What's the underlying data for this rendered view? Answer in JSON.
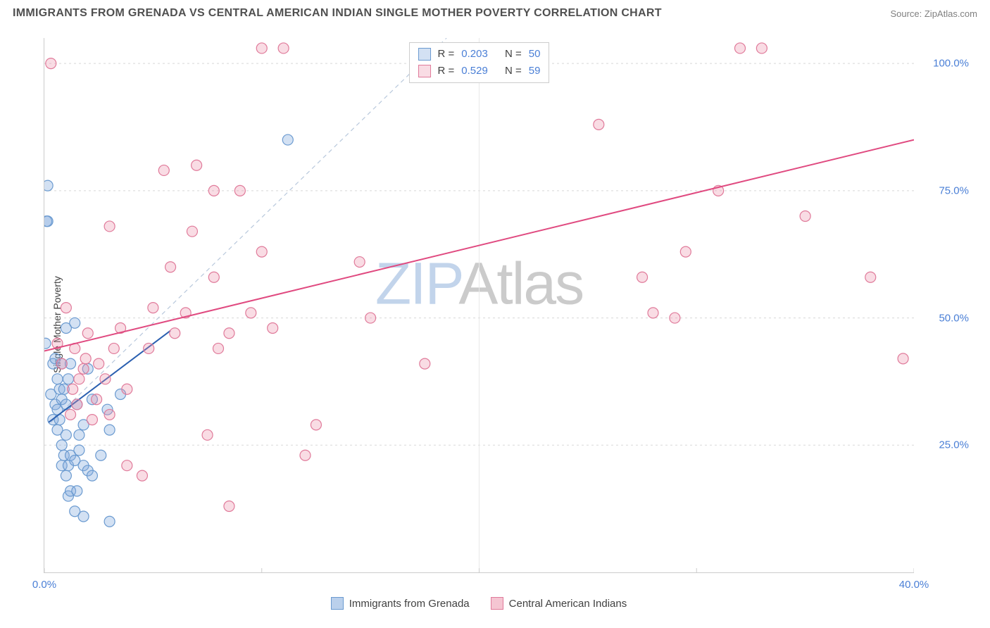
{
  "header": {
    "title": "IMMIGRANTS FROM GRENADA VS CENTRAL AMERICAN INDIAN SINGLE MOTHER POVERTY CORRELATION CHART",
    "source_prefix": "Source: ",
    "source_name": "ZipAtlas.com"
  },
  "chart": {
    "type": "scatter",
    "y_axis_label": "Single Mother Poverty",
    "xlim": [
      0,
      40
    ],
    "ylim": [
      0,
      105
    ],
    "x_ticks": [
      {
        "v": 0,
        "label": "0.0%"
      },
      {
        "v": 40,
        "label": "40.0%"
      }
    ],
    "y_ticks": [
      {
        "v": 25,
        "label": "25.0%"
      },
      {
        "v": 50,
        "label": "50.0%"
      },
      {
        "v": 75,
        "label": "75.0%"
      },
      {
        "v": 100,
        "label": "100.0%"
      }
    ],
    "gridline_y": [
      25,
      50,
      75,
      100
    ],
    "gridline_x_center": 20,
    "grid_color": "#d8d8d8",
    "axis_tick_color": "#4a7fd6",
    "background_color": "#ffffff",
    "dashed_line": {
      "from": [
        0.3,
        29.5
      ],
      "to": [
        18.5,
        105
      ],
      "color": "#b8c8dc",
      "dash": "6,5"
    },
    "series": [
      {
        "name": "Immigrants from Grenada",
        "marker_color_fill": "rgba(130,170,220,0.35)",
        "marker_color_stroke": "#6a9ad0",
        "marker_radius": 7.5,
        "trend_color": "#2a5fb0",
        "trend_width": 2,
        "trend_from": [
          0.2,
          29.5
        ],
        "trend_to": [
          5.8,
          47.5
        ],
        "r": "0.203",
        "n": "50",
        "points": [
          [
            0.05,
            45
          ],
          [
            0.1,
            69
          ],
          [
            0.15,
            69
          ],
          [
            0.15,
            76
          ],
          [
            0.3,
            35
          ],
          [
            0.4,
            30
          ],
          [
            0.4,
            41
          ],
          [
            0.5,
            33
          ],
          [
            0.5,
            42
          ],
          [
            0.6,
            28
          ],
          [
            0.6,
            32
          ],
          [
            0.6,
            38
          ],
          [
            0.7,
            30
          ],
          [
            0.7,
            36
          ],
          [
            0.8,
            21
          ],
          [
            0.8,
            25
          ],
          [
            0.8,
            34
          ],
          [
            0.8,
            41
          ],
          [
            0.9,
            23
          ],
          [
            0.9,
            36
          ],
          [
            1.0,
            19
          ],
          [
            1.0,
            27
          ],
          [
            1.0,
            33
          ],
          [
            1.0,
            48
          ],
          [
            1.1,
            15
          ],
          [
            1.1,
            21
          ],
          [
            1.1,
            38
          ],
          [
            1.2,
            16
          ],
          [
            1.2,
            23
          ],
          [
            1.2,
            41
          ],
          [
            1.4,
            12
          ],
          [
            1.4,
            22
          ],
          [
            1.4,
            49
          ],
          [
            1.5,
            16
          ],
          [
            1.5,
            33
          ],
          [
            1.6,
            24
          ],
          [
            1.6,
            27
          ],
          [
            1.8,
            11
          ],
          [
            1.8,
            21
          ],
          [
            1.8,
            29
          ],
          [
            2.0,
            40
          ],
          [
            2.0,
            20
          ],
          [
            2.2,
            34
          ],
          [
            2.2,
            19
          ],
          [
            2.6,
            23
          ],
          [
            2.9,
            32
          ],
          [
            3.0,
            28
          ],
          [
            3.0,
            10
          ],
          [
            3.5,
            35
          ],
          [
            11.2,
            85
          ]
        ]
      },
      {
        "name": "Central American Indians",
        "marker_color_fill": "rgba(235,140,165,0.30)",
        "marker_color_stroke": "#e07a9a",
        "marker_radius": 7.5,
        "trend_color": "#e04a80",
        "trend_width": 2,
        "trend_from": [
          0.0,
          43.5
        ],
        "trend_to": [
          40.0,
          85
        ],
        "r": "0.529",
        "n": "59",
        "points": [
          [
            0.3,
            100
          ],
          [
            0.6,
            45
          ],
          [
            0.8,
            41
          ],
          [
            1.0,
            52
          ],
          [
            1.2,
            31
          ],
          [
            1.3,
            36
          ],
          [
            1.4,
            44
          ],
          [
            1.5,
            33
          ],
          [
            1.6,
            38
          ],
          [
            1.8,
            40
          ],
          [
            1.9,
            42
          ],
          [
            2.0,
            47
          ],
          [
            2.2,
            30
          ],
          [
            2.4,
            34
          ],
          [
            2.5,
            41
          ],
          [
            2.8,
            38
          ],
          [
            3.0,
            31
          ],
          [
            3.0,
            68
          ],
          [
            3.2,
            44
          ],
          [
            3.5,
            48
          ],
          [
            3.8,
            21
          ],
          [
            3.8,
            36
          ],
          [
            4.5,
            19
          ],
          [
            4.8,
            44
          ],
          [
            5.0,
            52
          ],
          [
            5.5,
            79
          ],
          [
            5.8,
            60
          ],
          [
            6.0,
            47
          ],
          [
            6.5,
            51
          ],
          [
            6.8,
            67
          ],
          [
            7.0,
            80
          ],
          [
            7.5,
            27
          ],
          [
            7.8,
            58
          ],
          [
            7.8,
            75
          ],
          [
            8.0,
            44
          ],
          [
            8.5,
            47
          ],
          [
            8.5,
            13
          ],
          [
            9.0,
            75
          ],
          [
            9.5,
            51
          ],
          [
            10.0,
            63
          ],
          [
            10.0,
            103
          ],
          [
            10.5,
            48
          ],
          [
            11.0,
            103
          ],
          [
            12.0,
            23
          ],
          [
            12.5,
            29
          ],
          [
            14.5,
            61
          ],
          [
            15.0,
            50
          ],
          [
            17.5,
            41
          ],
          [
            25.5,
            88
          ],
          [
            27.5,
            58
          ],
          [
            28.0,
            51
          ],
          [
            29.0,
            50
          ],
          [
            29.5,
            63
          ],
          [
            31.0,
            75
          ],
          [
            32.0,
            103
          ],
          [
            33.0,
            103
          ],
          [
            35.0,
            70
          ],
          [
            38.0,
            58
          ],
          [
            39.5,
            42
          ]
        ]
      }
    ],
    "bottom_legend": [
      {
        "label": "Immigrants from Grenada",
        "fill": "rgba(130,170,220,0.55)",
        "border": "#6a9ad0"
      },
      {
        "label": "Central American Indians",
        "fill": "rgba(235,140,165,0.50)",
        "border": "#e07a9a"
      }
    ],
    "stats_box": {
      "r_label": "R =",
      "n_label": "N ="
    },
    "watermark": {
      "part1": "ZIP",
      "part2": "Atlas"
    }
  }
}
